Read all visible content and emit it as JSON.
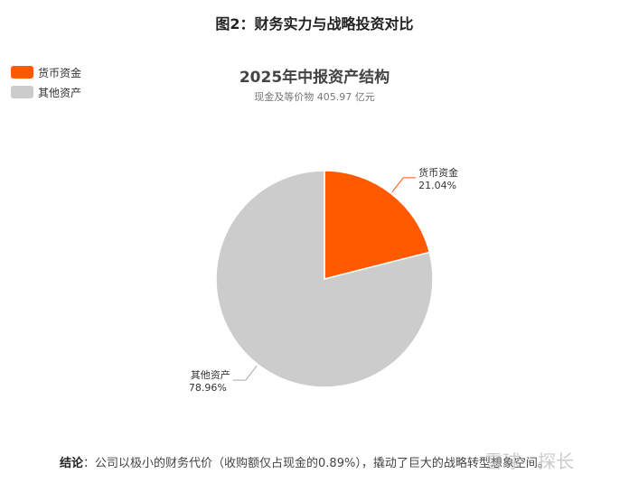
{
  "figure_title": "图2：财务实力与战略投资对比",
  "watermark": "雪球 · 探长",
  "conclusion": {
    "lead": "结论",
    "text": "公司以极小的财务代价（收购额仅占现金的0.89%），撬动了巨大的战略转型想象空间。"
  },
  "colors": {
    "currency_funds": "#ff5a00",
    "other_assets": "#cccccc"
  },
  "chart_data": {
    "type": "pie",
    "title": "2025年中报资产结构",
    "subtitle": "现金及等价物 405.97 亿元",
    "legend_position": "top-left",
    "slices": [
      {
        "name": "货币资金",
        "value": 21.04,
        "label": "21.04%",
        "color": "#ff5a00"
      },
      {
        "name": "其他资产",
        "value": 78.96,
        "label": "78.96%",
        "color": "#cccccc"
      }
    ]
  }
}
